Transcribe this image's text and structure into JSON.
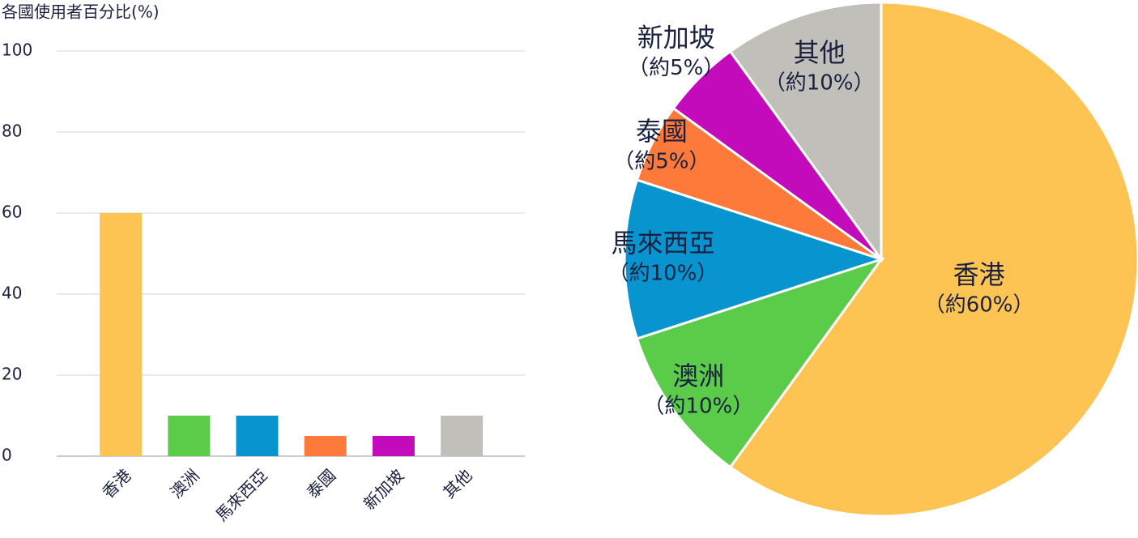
{
  "chart_data": [
    {
      "type": "bar",
      "y_label": "各國使用者百分比(%)",
      "categories": [
        "香港",
        "澳洲",
        "馬來西亞",
        "泰國",
        "新加坡",
        "其他"
      ],
      "values": [
        60,
        10,
        10,
        5,
        5,
        10
      ],
      "colors": [
        "#FDC453",
        "#5BCB4A",
        "#0794CF",
        "#FD7A3A",
        "#C30BBB",
        "#C0BFBA"
      ],
      "ylim": [
        0,
        100
      ],
      "yticks": [
        0,
        20,
        40,
        60,
        80,
        100
      ],
      "grid": true
    },
    {
      "type": "pie",
      "categories": [
        "香港",
        "澳洲",
        "馬來西亞",
        "泰國",
        "新加坡",
        "其他"
      ],
      "values": [
        60,
        10,
        10,
        5,
        5,
        10
      ],
      "value_labels": [
        "（約60%）",
        "（約10%）",
        "（約10%）",
        "（約5%）",
        "（約5%）",
        "（約10%）"
      ],
      "colors": [
        "#FDC453",
        "#5BCB4A",
        "#0794CF",
        "#FD7A3A",
        "#C30BBB",
        "#C0BFBA"
      ]
    }
  ]
}
